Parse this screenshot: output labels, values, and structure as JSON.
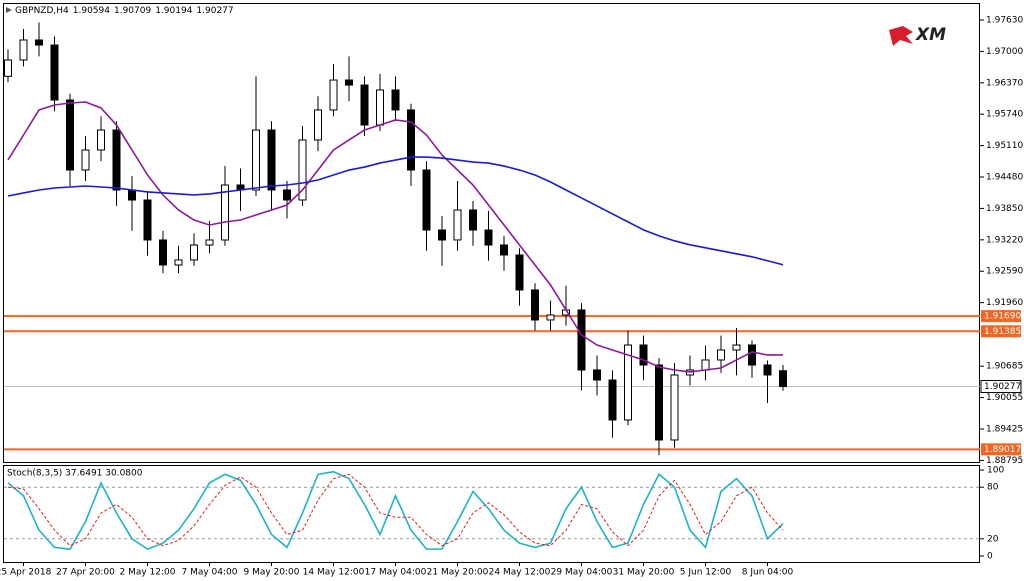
{
  "chart_data": [
    {
      "type": "candlestick",
      "title": "GBPNZD,H4",
      "logo": "XM",
      "categories": [
        null,
        "25 Apr 2018",
        null,
        null,
        null,
        "27 Apr 20:00",
        null,
        null,
        null,
        "2 May 12:00",
        null,
        null,
        null,
        "7 May 04:00",
        null,
        null,
        null,
        "9 May 20:00",
        null,
        null,
        null,
        "14 May 12:00",
        null,
        null,
        null,
        "17 May 04:00",
        null,
        null,
        null,
        "21 May 20:00",
        null,
        null,
        null,
        "24 May 12:00",
        null,
        null,
        null,
        "29 May 04:00",
        null,
        null,
        null,
        "31 May 20:00",
        null,
        null,
        null,
        "5 Jun 12:00",
        null,
        null,
        null,
        "8 Jun 04:00",
        null
      ],
      "open": [
        1.965,
        1.96828,
        1.97229,
        1.97128,
        1.96025,
        1.94621,
        1.95022,
        1.95423,
        1.9422,
        1.94019,
        1.93217,
        1.92715,
        1.92816,
        1.93116,
        1.93217,
        1.9432,
        1.9422,
        1.95423,
        1.9422,
        1.94019,
        1.95223,
        1.95825,
        1.96426,
        1.96325,
        1.95524,
        1.96226,
        1.95825,
        1.94621,
        1.93417,
        1.93217,
        1.93819,
        1.93417,
        1.93116,
        1.92916,
        1.92214,
        1.91612,
        1.91712,
        1.91813,
        1.90609,
        1.90408,
        1.89606,
        1.9111,
        1.90709,
        1.89205,
        1.90509,
        1.90609,
        1.9081,
        1.9101,
        1.9111,
        1.90709,
        1.90594
      ],
      "high": [
        1.9704,
        1.9745,
        1.9758,
        1.973,
        1.9615,
        1.953,
        1.957,
        1.956,
        1.945,
        1.942,
        1.934,
        1.931,
        1.9335,
        1.936,
        1.947,
        1.9465,
        1.965,
        1.956,
        1.944,
        1.955,
        1.961,
        1.9675,
        1.969,
        1.965,
        1.9655,
        1.965,
        1.9595,
        1.948,
        1.937,
        1.944,
        1.94,
        1.938,
        1.933,
        1.9305,
        1.9235,
        1.92,
        1.923,
        1.9195,
        1.909,
        1.906,
        1.914,
        1.913,
        1.9085,
        1.9075,
        1.909,
        1.911,
        1.913,
        1.9145,
        1.912,
        1.908,
        1.90709
      ],
      "low": [
        1.9638,
        1.967,
        1.969,
        1.958,
        1.943,
        1.944,
        1.948,
        1.939,
        1.934,
        1.929,
        1.9255,
        1.9255,
        1.927,
        1.9295,
        1.931,
        1.938,
        1.941,
        1.938,
        1.9365,
        1.939,
        1.95,
        1.957,
        1.96,
        1.953,
        1.954,
        1.956,
        1.943,
        1.93,
        1.927,
        1.93,
        1.931,
        1.928,
        1.926,
        1.919,
        1.914,
        1.914,
        1.915,
        1.902,
        1.901,
        1.8925,
        1.895,
        1.904,
        1.889,
        1.8905,
        1.903,
        1.904,
        1.9055,
        1.905,
        1.9045,
        1.8995,
        1.90194
      ],
      "close": [
        1.96828,
        1.97229,
        1.97128,
        1.96025,
        1.94621,
        1.95022,
        1.95423,
        1.9422,
        1.94019,
        1.93217,
        1.92715,
        1.92816,
        1.93116,
        1.93217,
        1.9432,
        1.9422,
        1.95423,
        1.9422,
        1.94019,
        1.95223,
        1.95825,
        1.96426,
        1.96325,
        1.95524,
        1.96226,
        1.95825,
        1.94621,
        1.93417,
        1.93217,
        1.93819,
        1.93417,
        1.93116,
        1.92916,
        1.92214,
        1.91612,
        1.91712,
        1.91813,
        1.90609,
        1.90408,
        1.89606,
        1.9111,
        1.90709,
        1.89205,
        1.90509,
        1.90609,
        1.9081,
        1.9101,
        1.9111,
        1.90709,
        1.90509,
        1.90277
      ],
      "candle_color": "#000000",
      "series": [
        {
          "color": "#8b1a9b",
          "values": [
            1.94822,
            1.95323,
            1.95825,
            1.95925,
            1.95965,
            1.95985,
            1.95865,
            1.95524,
            1.95022,
            1.94521,
            1.94119,
            1.93819,
            1.93618,
            1.93518,
            1.93578,
            1.93618,
            1.93718,
            1.93819,
            1.93919,
            1.9422,
            1.94621,
            1.95022,
            1.95223,
            1.95423,
            1.95524,
            1.95624,
            1.95584,
            1.95323,
            1.94922,
            1.94621,
            1.9432,
            1.93919,
            1.93518,
            1.93116,
            1.92715,
            1.92314,
            1.91813,
            1.91311,
            1.9111,
            1.9101,
            1.9091,
            1.9081,
            1.90669,
            1.90609,
            1.90569,
            1.90609,
            1.90649,
            1.9081,
            1.9097,
            1.9091,
            1.9091
          ]
        },
        {
          "color": "#1a1ad8",
          "values": [
            1.94099,
            1.9416,
            1.9422,
            1.9426,
            1.9428,
            1.943,
            1.9428,
            1.9426,
            1.9422,
            1.9418,
            1.9416,
            1.9414,
            1.9412,
            1.9414,
            1.9418,
            1.9422,
            1.9426,
            1.943,
            1.9432,
            1.9436,
            1.9442,
            1.9452,
            1.9462,
            1.9468,
            1.9476,
            1.9482,
            1.9488,
            1.9488,
            1.9486,
            1.9482,
            1.9478,
            1.9476,
            1.947,
            1.9462,
            1.9452,
            1.9438,
            1.9422,
            1.9406,
            1.939,
            1.9374,
            1.9358,
            1.9342,
            1.933,
            1.932,
            1.9312,
            1.9306,
            1.93,
            1.9294,
            1.9288,
            1.928,
            1.9272
          ]
        }
      ],
      "levels": [
        {
          "value": 1.9169,
          "label": "1.91690"
        },
        {
          "value": 1.91385,
          "label": "1.91385"
        },
        {
          "value": 1.89017,
          "label": "1.89017"
        }
      ],
      "level_color": "#f26522",
      "ylim": [
        1.88763,
        1.97951
      ],
      "yticks": [
        {
          "value": 1.9763,
          "label": "1.97630"
        },
        {
          "value": 1.97,
          "label": "1.97000"
        },
        {
          "value": 1.9637,
          "label": "1.96370"
        },
        {
          "value": 1.9574,
          "label": "1.95740"
        },
        {
          "value": 1.9511,
          "label": "1.95110"
        },
        {
          "value": 1.9448,
          "label": "1.94480"
        },
        {
          "value": 1.9385,
          "label": "1.93850"
        },
        {
          "value": 1.9322,
          "label": "1.93220"
        },
        {
          "value": 1.9259,
          "label": "1.92590"
        },
        {
          "value": 1.9196,
          "label": "1.91960"
        },
        1.90685,
        1.90055,
        1.89425,
        1.88795
      ]
    },
    {
      "type": "line",
      "title": "Stoch(8,3,5) 37.6491 30.0800",
      "series": [
        {
          "color": "#20b2c8",
          "values": [
            85,
            70,
            30,
            10,
            8,
            40,
            85,
            50,
            20,
            8,
            15,
            30,
            55,
            85,
            95,
            88,
            60,
            25,
            10,
            50,
            95,
            98,
            90,
            60,
            25,
            70,
            30,
            8,
            8,
            40,
            75,
            55,
            30,
            15,
            10,
            15,
            55,
            80,
            40,
            10,
            15,
            60,
            95,
            80,
            30,
            10,
            75,
            90,
            70,
            20,
            37.6491
          ]
        },
        {
          "color": "#e02020",
          "dashed": true,
          "values": [
            80,
            78,
            55,
            30,
            12,
            20,
            50,
            60,
            45,
            20,
            12,
            18,
            35,
            60,
            82,
            92,
            80,
            50,
            25,
            30,
            65,
            90,
            95,
            80,
            50,
            45,
            45,
            25,
            12,
            20,
            50,
            62,
            48,
            28,
            15,
            12,
            30,
            60,
            55,
            28,
            12,
            30,
            70,
            88,
            60,
            25,
            40,
            70,
            80,
            50,
            30.08
          ]
        }
      ],
      "ylim": [
        0,
        100
      ],
      "yticks": [
        0,
        20,
        80,
        100
      ],
      "levels": [
        20,
        80
      ]
    }
  ]
}
